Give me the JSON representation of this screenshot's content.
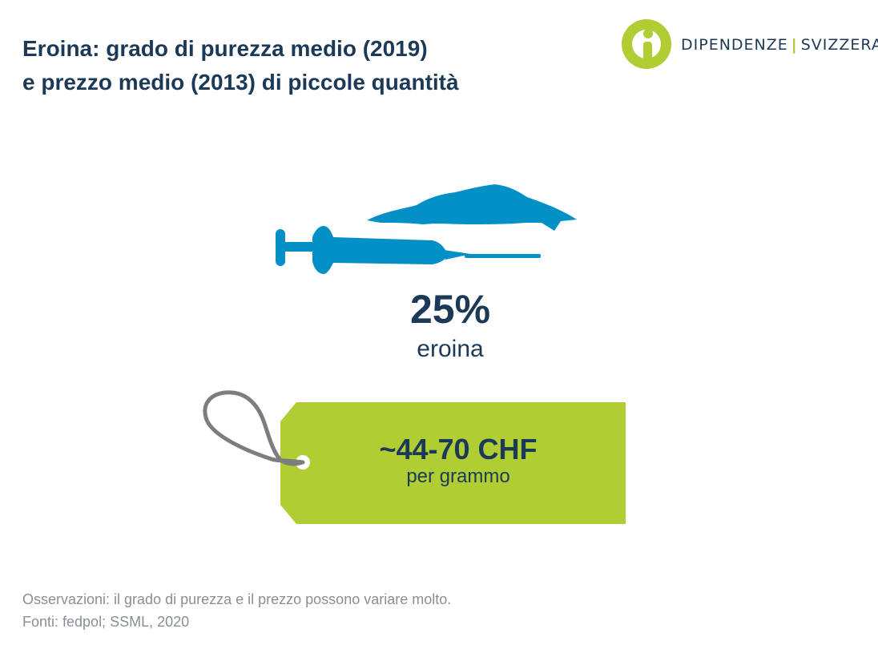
{
  "header": {
    "title_line1": "Eroina: grado di purezza medio (2019)",
    "title_line2": "e prezzo medio (2013) di piccole quantità"
  },
  "logo": {
    "name_left": "DIPENDENZE",
    "separator": "|",
    "name_right": "SVIZZERA",
    "icon": "info-person-icon"
  },
  "purity": {
    "value": "25%",
    "label": "eroina",
    "icon": "syringe-icon"
  },
  "price": {
    "value": "~44-70 CHF",
    "unit": "per grammo",
    "icon": "price-tag-icon"
  },
  "footnotes": {
    "note": "Osservazioni: il grado di purezza e il prezzo possono variare molto.",
    "sources": "Fonti: fedpol; SSML, 2020"
  },
  "colors": {
    "title": "#1c3a57",
    "accent_green": "#b0cd33",
    "syringe_blue": "#0290c6",
    "footnote_gray": "#8a8f96",
    "string_gray": "#7d7d7d"
  }
}
